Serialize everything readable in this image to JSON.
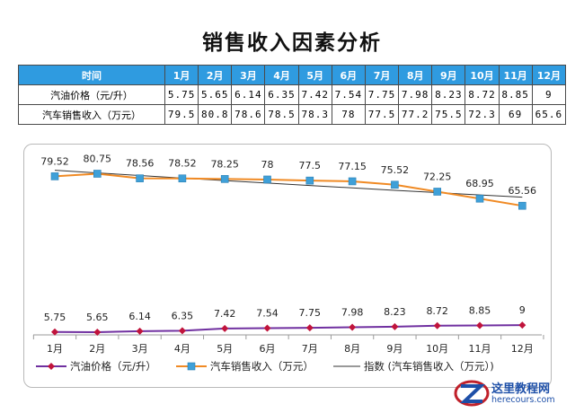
{
  "title": "销售收入因素分析",
  "table": {
    "header_label": "时间",
    "months": [
      "1月",
      "2月",
      "3月",
      "4月",
      "5月",
      "6月",
      "7月",
      "8月",
      "9月",
      "10月",
      "11月",
      "12月"
    ],
    "rows": [
      {
        "label": "汽油价格（元/升）",
        "values": [
          "5.75",
          "5.65",
          "6.14",
          "6.35",
          "7.42",
          "7.54",
          "7.75",
          "7.98",
          "8.23",
          "8.72",
          "8.85",
          "9"
        ]
      },
      {
        "label": "汽车销售收入（万元）",
        "values": [
          "79.5",
          "80.8",
          "78.6",
          "78.5",
          "78.3",
          "78",
          "77.5",
          "77.2",
          "75.5",
          "72.3",
          "69",
          "65.6"
        ]
      }
    ]
  },
  "chart_data": {
    "type": "line",
    "categories": [
      "1月",
      "2月",
      "3月",
      "4月",
      "5月",
      "6月",
      "7月",
      "8月",
      "9月",
      "10月",
      "11月",
      "12月"
    ],
    "series": [
      {
        "name": "汽油价格（元/升）",
        "color": "#7030a0",
        "marker": "diamond",
        "values": [
          5.75,
          5.65,
          6.14,
          6.35,
          7.42,
          7.54,
          7.75,
          7.98,
          8.23,
          8.72,
          8.85,
          9
        ],
        "labels": [
          "5.75",
          "5.65",
          "6.14",
          "6.35",
          "7.42",
          "7.54",
          "7.75",
          "7.98",
          "8.23",
          "8.72",
          "8.85",
          "9"
        ]
      },
      {
        "name": "汽车销售收入（万元）",
        "color": "#f08a24",
        "marker": "square",
        "values": [
          79.52,
          80.75,
          78.56,
          78.52,
          78.25,
          78,
          77.5,
          77.15,
          75.52,
          72.25,
          68.95,
          65.56
        ],
        "labels": [
          "79.52",
          "80.75",
          "78.56",
          "78.52",
          "78.25",
          "78",
          "77.5",
          "77.15",
          "75.52",
          "72.25",
          "68.95",
          "65.56"
        ]
      }
    ],
    "trendline": {
      "name": "指数 (汽车销售收入（万元）)",
      "color": "#333333",
      "type": "exponential"
    },
    "legend_position": "bottom",
    "grid": false
  },
  "watermark": {
    "site": "这里教程网",
    "url": "herecours.com"
  }
}
